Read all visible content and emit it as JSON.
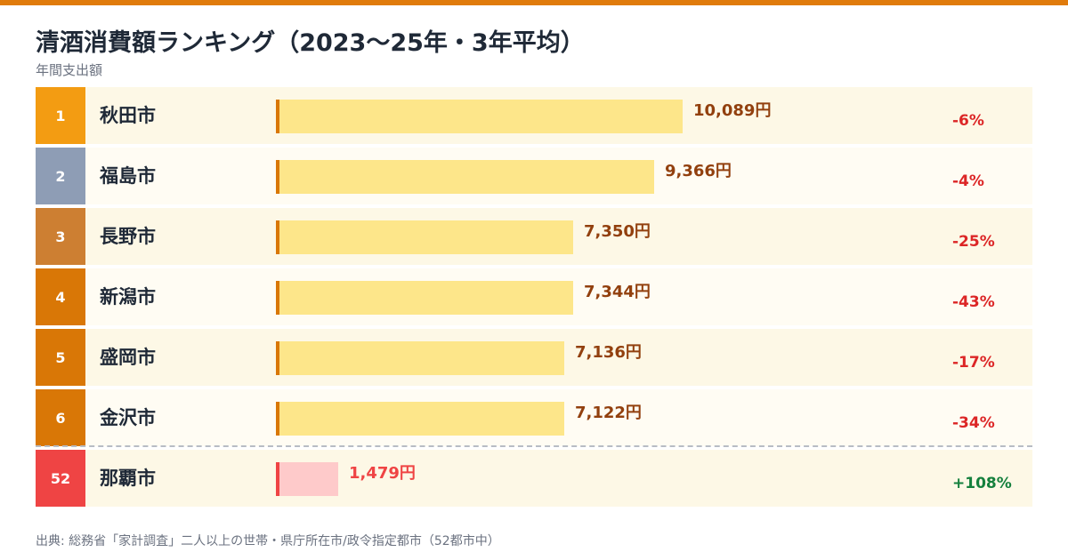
{
  "header": {
    "title": "清酒消費額ランキング（2023〜25年・3年平均）",
    "subtitle": "年間支出額"
  },
  "colors": {
    "top_bar": "#e07b0c",
    "rank_1": "#f39c12",
    "rank_2": "#8e9db5",
    "rank_3": "#cd7f32",
    "rank_default": "#d97706",
    "rank_highlight": "#ef4444",
    "row_bg_odd": "#fdf8e6",
    "row_bg_even": "#fffcf3",
    "row_bg_highlight": "#fdf8e6",
    "bar_fill": "#fde68a",
    "bar_accent": "#d97706",
    "bar_fill_highlight": "#fecaca",
    "bar_accent_highlight": "#ef4444",
    "value_text": "#92400e",
    "value_text_highlight": "#ef4444",
    "change_negative": "#dc2626",
    "change_positive": "#15803d"
  },
  "chart_data": {
    "type": "bar",
    "orientation": "horizontal",
    "categories": [
      "秋田市",
      "福島市",
      "長野市",
      "新潟市",
      "盛岡市",
      "金沢市",
      "那覇市"
    ],
    "values": [
      10089,
      9366,
      7350,
      7344,
      7136,
      7122,
      1479
    ],
    "ranks": [
      "1",
      "2",
      "3",
      "4",
      "5",
      "6",
      "52"
    ],
    "value_labels": [
      "10,089円",
      "9,366円",
      "7,350円",
      "7,344円",
      "7,136円",
      "7,122円",
      "1,479円"
    ],
    "changes": [
      "-6%",
      "-4%",
      "-25%",
      "-43%",
      "-17%",
      "-34%",
      "+108%"
    ],
    "highlight_index": 6,
    "xlim": [
      0,
      10089
    ]
  },
  "footer": {
    "source": "出典: 総務省「家計調査」二人以上の世帯・県庁所在市/政令指定都市（52都市中）"
  }
}
